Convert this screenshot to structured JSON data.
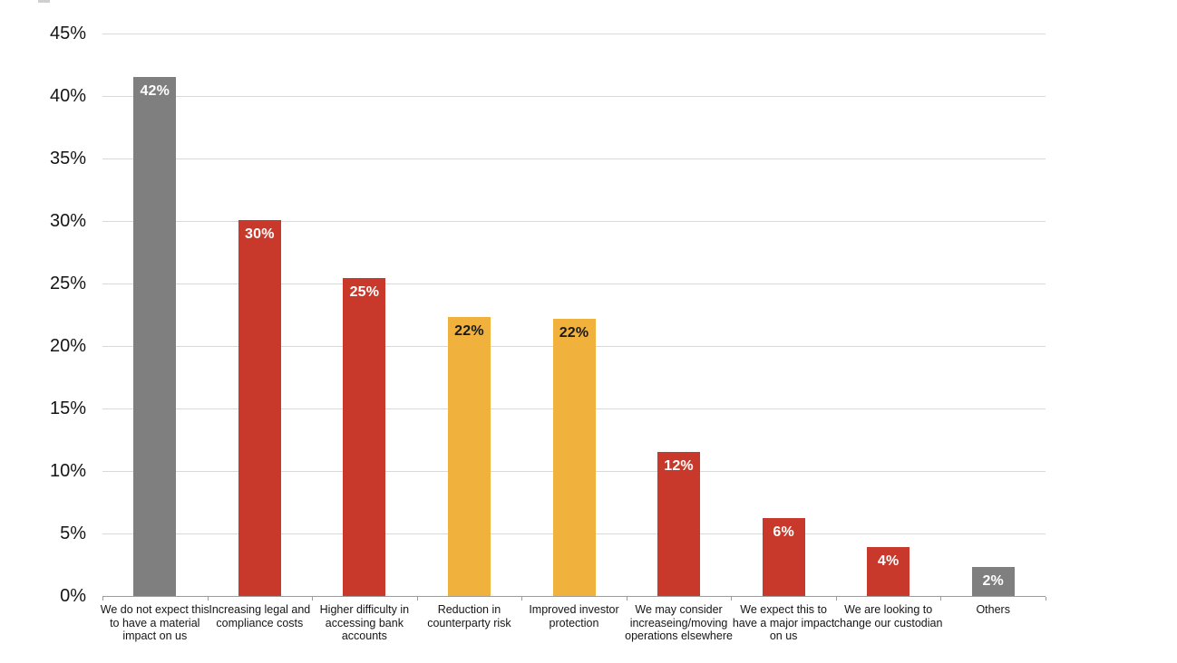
{
  "chart_data": {
    "type": "bar",
    "title": "",
    "xlabel": "",
    "ylabel": "",
    "legend": "none",
    "grid": true,
    "categories": [
      "We do not expect this to have a material impact on us",
      "Increasing legal and compliance costs",
      "Higher difficulty in accessing bank accounts",
      "Reduction in counterparty risk",
      "Improved investor protection",
      "We may consider increaseing/moving operations elsewhere",
      "We expect this to have a major impact on us",
      "We are looking to change our custodian",
      "Others"
    ],
    "values": [
      42,
      30,
      25,
      22,
      22,
      12,
      6,
      4,
      2
    ],
    "values_exact_pct": [
      41.5,
      30.1,
      25.4,
      22.3,
      22.2,
      11.5,
      6.2,
      3.9,
      2.3
    ],
    "data_labels": [
      "42%",
      "30%",
      "25%",
      "22%",
      "22%",
      "12%",
      "6%",
      "4%",
      "2%"
    ],
    "bar_colors": [
      "#7f7f7f",
      "#c8392b",
      "#c8392b",
      "#f0b23c",
      "#f0b23c",
      "#c8392b",
      "#c8392b",
      "#c8392b",
      "#7f7f7f"
    ],
    "data_label_colors": [
      "#ffffff",
      "#ffffff",
      "#ffffff",
      "#1a1a1a",
      "#1a1a1a",
      "#ffffff",
      "#ffffff",
      "#ffffff",
      "#ffffff"
    ],
    "y_axis": {
      "min": 0,
      "max": 45,
      "step": 5,
      "tick_labels": [
        "0%",
        "5%",
        "10%",
        "15%",
        "20%",
        "25%",
        "30%",
        "35%",
        "40%",
        "45%"
      ]
    },
    "colors": {
      "gridline": "#d9d9d9",
      "axis_line": "#9c9c9c",
      "tick_text": "#151515",
      "gray_bar": "#7f7f7f",
      "red_bar": "#c8392b",
      "yellow_bar": "#f0b23c"
    }
  }
}
